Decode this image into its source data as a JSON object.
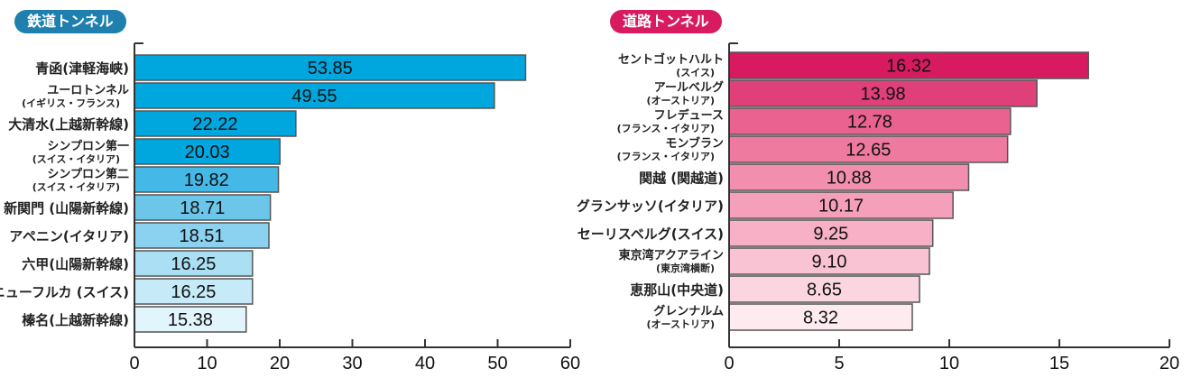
{
  "chart_data": [
    {
      "type": "bar",
      "orientation": "horizontal",
      "title": "鉄道トンネル",
      "title_color": "#1f7fae",
      "categories": [
        {
          "main": "青函(津軽海峡)",
          "sub": ""
        },
        {
          "main": "ユーロトンネル",
          "sub": "(イギリス・フランス)"
        },
        {
          "main": "大清水(上越新幹線)",
          "sub": ""
        },
        {
          "main": "シンプロン第一",
          "sub": "(スイス・イタリア)"
        },
        {
          "main": "シンプロン第二",
          "sub": "(スイス・イタリア)"
        },
        {
          "main": "新関門 (山陽新幹線)",
          "sub": ""
        },
        {
          "main": "アペニン(イタリア)",
          "sub": ""
        },
        {
          "main": "六甲(山陽新幹線)",
          "sub": ""
        },
        {
          "main": "ニューフルカ (スイス)",
          "sub": ""
        },
        {
          "main": "榛名(上越新幹線)",
          "sub": ""
        }
      ],
      "values": [
        53.85,
        49.55,
        22.22,
        20.03,
        19.82,
        18.71,
        18.51,
        16.25,
        16.25,
        15.38
      ],
      "value_labels": [
        "53.85",
        "49.55",
        "22.22",
        "20.03",
        "19.82",
        "18.71",
        "18.51",
        "16.25",
        "16.25",
        "15.38"
      ],
      "bar_colors": [
        "#00a6de",
        "#00a6de",
        "#00a6de",
        "#00a6de",
        "#44b8e6",
        "#6cc6ea",
        "#8ad2ef",
        "#aadff4",
        "#c6eaf8",
        "#e2f4fc"
      ],
      "xlim": [
        0,
        60
      ],
      "xticks": [
        "0",
        "10",
        "20",
        "30",
        "40",
        "50",
        "60"
      ],
      "grid": false
    },
    {
      "type": "bar",
      "orientation": "horizontal",
      "title": "道路トンネル",
      "title_color": "#d81b60",
      "categories": [
        {
          "main": "セントゴットハルト",
          "sub": "(スイス)"
        },
        {
          "main": "アールベルグ",
          "sub": "(オーストリア)"
        },
        {
          "main": "フレデュース",
          "sub": "(フランス・イタリア)"
        },
        {
          "main": "モンブラン",
          "sub": "(フランス・イタリア)"
        },
        {
          "main": "関越 (関越道)",
          "sub": ""
        },
        {
          "main": "グランサッソ(イタリア)",
          "sub": ""
        },
        {
          "main": "セーリスベルグ(スイス)",
          "sub": ""
        },
        {
          "main": "東京湾アクアライン",
          "sub": "(東京湾横断)"
        },
        {
          "main": "恵那山(中央道)",
          "sub": ""
        },
        {
          "main": "グレンナルム",
          "sub": "(オーストリア)"
        }
      ],
      "values": [
        16.32,
        13.98,
        12.78,
        12.65,
        10.88,
        10.17,
        9.25,
        9.1,
        8.65,
        8.32
      ],
      "value_labels": [
        "16.32",
        "13.98",
        "12.78",
        "12.65",
        "10.88",
        "10.17",
        "9.25",
        "9.10",
        "8.65",
        "8.32"
      ],
      "bar_colors": [
        "#d81b60",
        "#e0407a",
        "#ea628f",
        "#ee7a9f",
        "#f28fae",
        "#f5a0bb",
        "#f7b0c6",
        "#f9c3d3",
        "#fbd6e1",
        "#fdebf0"
      ],
      "xlim": [
        0,
        20
      ],
      "xticks": [
        "0",
        "5",
        "10",
        "15",
        "20"
      ],
      "grid": false
    }
  ]
}
